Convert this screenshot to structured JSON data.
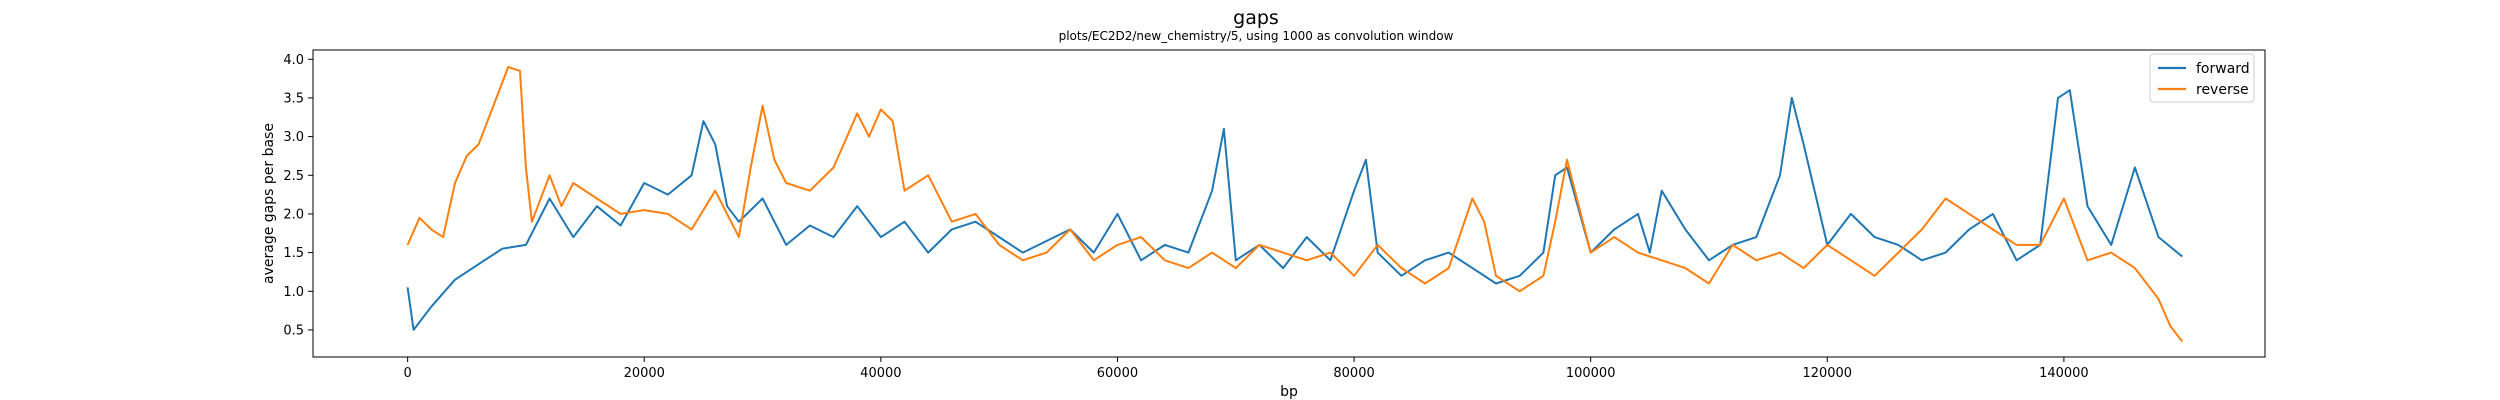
{
  "chart_data": {
    "type": "line",
    "title": "gaps",
    "subtitle": "plots/EC2D2/new_chemistry/5, using 1000 as convolution window",
    "xlabel": "bp",
    "ylabel": "average gaps per base",
    "xlim": [
      -8000,
      157000
    ],
    "ylim": [
      0.15,
      4.12
    ],
    "xticks": [
      0,
      20000,
      40000,
      60000,
      80000,
      100000,
      120000,
      140000
    ],
    "yticks": [
      0.5,
      1.0,
      1.5,
      2.0,
      2.5,
      3.0,
      3.5,
      4.0
    ],
    "grid": false,
    "legend_position": "top-right",
    "colors": {
      "forward": "#1f77b4",
      "reverse": "#ff7f0e"
    },
    "series": [
      {
        "name": "forward",
        "x": [
          0,
          500,
          2000,
          4000,
          6000,
          8000,
          10000,
          12000,
          14000,
          16000,
          18000,
          20000,
          22000,
          24000,
          25000,
          26000,
          27000,
          28000,
          30000,
          32000,
          34000,
          36000,
          38000,
          40000,
          42000,
          44000,
          46000,
          48000,
          50000,
          52000,
          54000,
          56000,
          58000,
          60000,
          62000,
          64000,
          66000,
          68000,
          69000,
          70000,
          72000,
          74000,
          76000,
          78000,
          80000,
          81000,
          82000,
          84000,
          86000,
          88000,
          90000,
          92000,
          94000,
          96000,
          97000,
          98000,
          100000,
          102000,
          104000,
          105000,
          106000,
          108000,
          110000,
          112000,
          114000,
          116000,
          117000,
          118000,
          120000,
          122000,
          124000,
          126000,
          128000,
          130000,
          132000,
          134000,
          136000,
          138000,
          139500,
          140500,
          142000,
          144000,
          146000,
          148000,
          150000
        ],
        "values": [
          1.05,
          0.5,
          0.8,
          1.15,
          1.35,
          1.55,
          1.6,
          2.2,
          1.7,
          2.1,
          1.85,
          2.4,
          2.25,
          2.5,
          3.2,
          2.9,
          2.1,
          1.9,
          2.2,
          1.6,
          1.85,
          1.7,
          2.1,
          1.7,
          1.9,
          1.5,
          1.8,
          1.9,
          1.7,
          1.5,
          1.65,
          1.8,
          1.5,
          2.0,
          1.4,
          1.6,
          1.5,
          2.3,
          3.1,
          1.4,
          1.6,
          1.3,
          1.7,
          1.4,
          2.3,
          2.7,
          1.5,
          1.2,
          1.4,
          1.5,
          1.3,
          1.1,
          1.2,
          1.5,
          2.5,
          2.6,
          1.5,
          1.8,
          2.0,
          1.5,
          2.3,
          1.8,
          1.4,
          1.6,
          1.7,
          2.5,
          3.5,
          2.9,
          1.6,
          2.0,
          1.7,
          1.6,
          1.4,
          1.5,
          1.8,
          2.0,
          1.4,
          1.6,
          3.5,
          3.6,
          2.1,
          1.6,
          2.6,
          1.7,
          1.45
        ]
      },
      {
        "name": "reverse",
        "x": [
          0,
          1000,
          2000,
          3000,
          4000,
          5000,
          6000,
          7000,
          8000,
          8500,
          9500,
          10000,
          10500,
          12000,
          13000,
          14000,
          16000,
          18000,
          20000,
          22000,
          24000,
          26000,
          28000,
          29000,
          30000,
          31000,
          32000,
          34000,
          36000,
          38000,
          39000,
          40000,
          41000,
          42000,
          44000,
          46000,
          48000,
          50000,
          52000,
          54000,
          56000,
          58000,
          60000,
          62000,
          64000,
          66000,
          68000,
          70000,
          72000,
          74000,
          76000,
          78000,
          80000,
          82000,
          84000,
          86000,
          88000,
          90000,
          91000,
          92000,
          94000,
          96000,
          97000,
          98000,
          100000,
          102000,
          104000,
          106000,
          108000,
          110000,
          112000,
          114000,
          116000,
          118000,
          120000,
          122000,
          124000,
          126000,
          128000,
          130000,
          132000,
          134000,
          136000,
          138000,
          140000,
          142000,
          144000,
          146000,
          148000,
          149000,
          150000
        ],
        "values": [
          1.6,
          1.95,
          1.8,
          1.7,
          2.4,
          2.75,
          2.9,
          3.3,
          3.7,
          3.9,
          3.85,
          2.6,
          1.9,
          2.5,
          2.1,
          2.4,
          2.2,
          2.0,
          2.05,
          2.0,
          1.8,
          2.3,
          1.7,
          2.6,
          3.4,
          2.7,
          2.4,
          2.3,
          2.6,
          3.3,
          3.0,
          3.35,
          3.2,
          2.3,
          2.5,
          1.9,
          2.0,
          1.6,
          1.4,
          1.5,
          1.8,
          1.4,
          1.6,
          1.7,
          1.4,
          1.3,
          1.5,
          1.3,
          1.6,
          1.5,
          1.4,
          1.5,
          1.2,
          1.6,
          1.3,
          1.1,
          1.3,
          2.2,
          1.9,
          1.2,
          1.0,
          1.2,
          1.9,
          2.7,
          1.5,
          1.7,
          1.5,
          1.4,
          1.3,
          1.1,
          1.6,
          1.4,
          1.5,
          1.3,
          1.6,
          1.4,
          1.2,
          1.5,
          1.8,
          2.2,
          2.0,
          1.8,
          1.6,
          1.6,
          2.2,
          1.4,
          1.5,
          1.3,
          0.9,
          0.55,
          0.35
        ]
      }
    ]
  }
}
